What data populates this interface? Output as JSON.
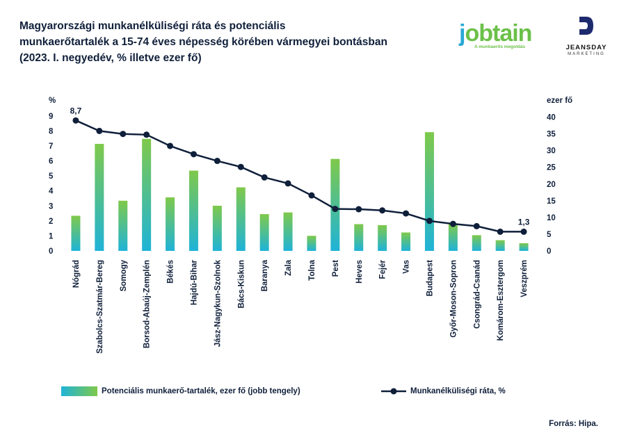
{
  "title_lines": [
    "Magyarországi munkanélküliségi ráta és potenciális",
    "munkaerőtartalék a 15-74 éves népesség körében vármegyei bontásban",
    "(2023. I. negyedév, % illetve ezer fő)"
  ],
  "logos": {
    "jobtain_word_j": "j",
    "jobtain_word_rest": "obtain",
    "jobtain_tagline": "A munkaerős megoldás",
    "jeansday_name": "JEANSDAY",
    "jeansday_sub": "MARKETING"
  },
  "source": "Forrás: Hipa.",
  "colors": {
    "navy": "#0f1f3a",
    "bar_bottom": "#1fb3d8",
    "bar_top": "#7fc94b"
  },
  "chart_data": {
    "type": "bar",
    "categories": [
      "Nógrád",
      "Szabolcs-Szatmár-Bereg",
      "Somogy",
      "Borsod-Abaúj-Zemplén",
      "Békés",
      "Hajdú-Bihar",
      "Jász-Nagykun-Szolnok",
      "Bács-Kiskun",
      "Baranya",
      "Zala",
      "Tolna",
      "Pest",
      "Heves",
      "Fejér",
      "Vas",
      "Budapest",
      "Győr-Moson-Sopron",
      "Csongrád-Csanád",
      "Komárom-Esztergom",
      "Veszprém"
    ],
    "left_axis_unit": "%",
    "right_axis_unit": "ezer fő",
    "left_ticks": [
      0,
      1,
      2,
      3,
      4,
      5,
      6,
      7,
      8,
      9
    ],
    "right_ticks": [
      0,
      5,
      10,
      15,
      20,
      25,
      30,
      35,
      40
    ],
    "left_ylim": [
      0,
      9
    ],
    "right_ylim": [
      0,
      45
    ],
    "series": [
      {
        "name": "Potenciális munkaerő-tartalék, ezer fő (jobb tengely)",
        "type": "bar",
        "axis": "right",
        "values": [
          10.5,
          32,
          15,
          33.5,
          16,
          24,
          13.5,
          19,
          11,
          11.5,
          4.5,
          27.5,
          8,
          7.7,
          5.5,
          35.5,
          8,
          4.7,
          3.2,
          2.3
        ]
      },
      {
        "name": "Munkanélküliségi ráta, %",
        "type": "line",
        "axis": "left",
        "values": [
          8.7,
          8.0,
          7.8,
          7.75,
          7.0,
          6.45,
          6.0,
          5.6,
          4.9,
          4.5,
          3.7,
          2.8,
          2.78,
          2.7,
          2.5,
          2.0,
          1.8,
          1.65,
          1.28,
          1.28
        ]
      }
    ],
    "data_labels": [
      {
        "series": 1,
        "index": 0,
        "text": "8,7"
      },
      {
        "series": 1,
        "index": 19,
        "text": "1,3"
      }
    ]
  }
}
